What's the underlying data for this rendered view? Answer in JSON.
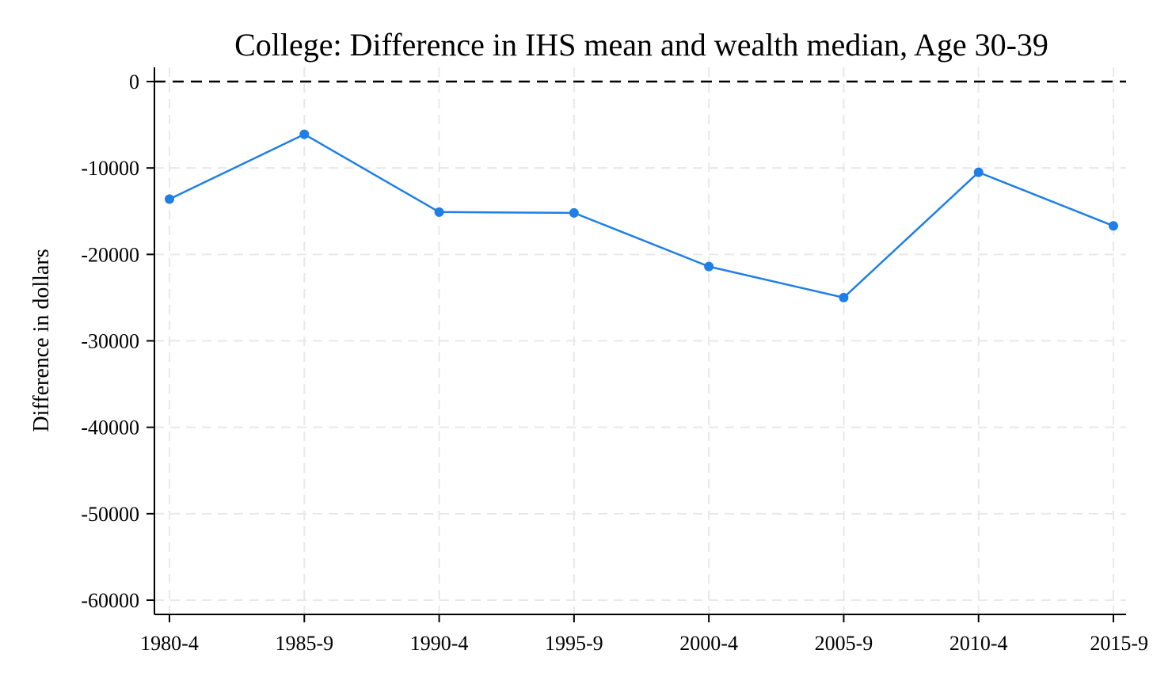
{
  "chart_data": {
    "type": "line",
    "title": "College: Difference in IHS mean and wealth median, Age 30-39",
    "xlabel": "",
    "ylabel": "Difference in dollars",
    "categories": [
      "1980-4",
      "1985-9",
      "1990-4",
      "1995-9",
      "2000-4",
      "2005-9",
      "2010-4",
      "2015-9"
    ],
    "series": [
      {
        "values": [
          -13600,
          -6100,
          -15100,
          -15200,
          -21400,
          -25000,
          -10500,
          -16700
        ],
        "color": "#1f7fe6"
      }
    ],
    "ylim": [
      -60000,
      0
    ],
    "yticks": [
      0,
      -10000,
      -20000,
      -30000,
      -40000,
      -50000,
      -60000
    ],
    "ytick_labels": [
      "0",
      "-10000",
      "-20000",
      "-30000",
      "-40000",
      "-50000",
      "-60000"
    ],
    "reference_line": {
      "value": 0,
      "style": "dashed",
      "color": "#000000"
    },
    "grid": true,
    "grid_color": "#e8e8e8",
    "legend": "none"
  }
}
